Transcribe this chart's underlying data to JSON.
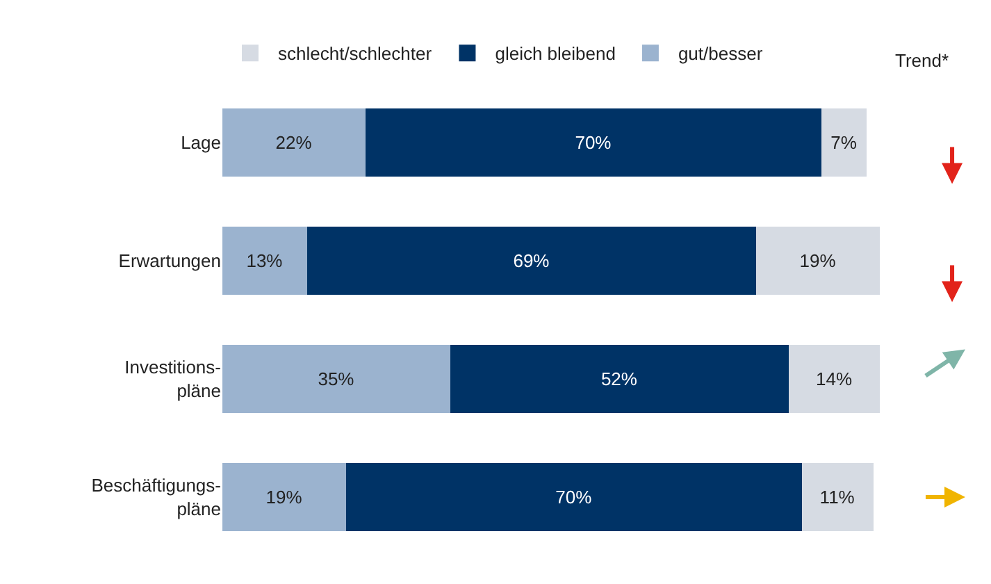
{
  "chart_data": {
    "type": "bar",
    "orientation": "horizontal",
    "stacked": true,
    "legend": "top",
    "categories": [
      "Lage",
      "Erwartungen",
      "Investitions-\npläne",
      "Beschäftigungs-\npläne"
    ],
    "series": [
      {
        "name": "gut/besser",
        "color": "#9bb3cf",
        "values": [
          22,
          13,
          35,
          19
        ],
        "value_labels": [
          "22%",
          "13%",
          "35%",
          "19%"
        ]
      },
      {
        "name": "gleich bleibend",
        "color": "#003366",
        "values": [
          70,
          69,
          52,
          70
        ],
        "value_labels": [
          "70%",
          "69%",
          "52%",
          "70%"
        ]
      },
      {
        "name": "schlecht/schlechter",
        "color": "#d6dbe3",
        "values": [
          7,
          19,
          14,
          11
        ],
        "value_labels": [
          "7%",
          "19%",
          "14%",
          "11%"
        ]
      }
    ],
    "annotations": [
      "Trend*"
    ]
  }
}
